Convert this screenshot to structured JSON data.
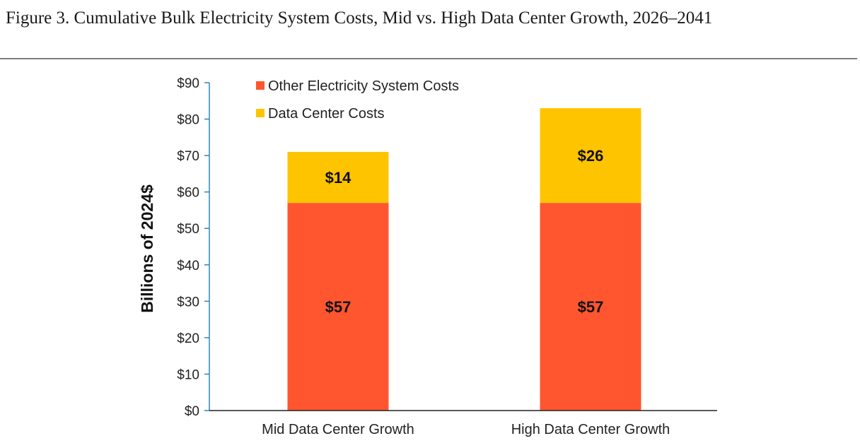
{
  "figure": {
    "title": "Figure 3. Cumulative Bulk Electricity System Costs, Mid vs. High Data Center Growth, 2026–2041"
  },
  "colors": {
    "other": "#ff5630",
    "data_center": "#ffc400",
    "y_axis": "#2e86c1",
    "x_axis": "#222222"
  },
  "chart_data": {
    "type": "bar",
    "stacked": true,
    "title": "Figure 3. Cumulative Bulk Electricity System Costs, Mid vs. High Data Center Growth, 2026–2041",
    "xlabel": "",
    "ylabel": "Billions of 2024$",
    "ylim": [
      0,
      90
    ],
    "yticks": [
      0,
      10,
      20,
      30,
      40,
      50,
      60,
      70,
      80,
      90
    ],
    "ytick_labels": [
      "$0",
      "$10",
      "$20",
      "$30",
      "$40",
      "$50",
      "$60",
      "$70",
      "$80",
      "$90"
    ],
    "categories": [
      "Mid Data Center Growth",
      "High Data Center Growth"
    ],
    "series": [
      {
        "name": "Other Electricity System Costs",
        "values": [
          57,
          57
        ],
        "labels": [
          "$57",
          "$57"
        ],
        "color": "#ff5630"
      },
      {
        "name": "Data Center Costs",
        "values": [
          14,
          26
        ],
        "labels": [
          "$14",
          "$26"
        ],
        "color": "#ffc400"
      }
    ],
    "grid": false,
    "legend": "top-left"
  }
}
